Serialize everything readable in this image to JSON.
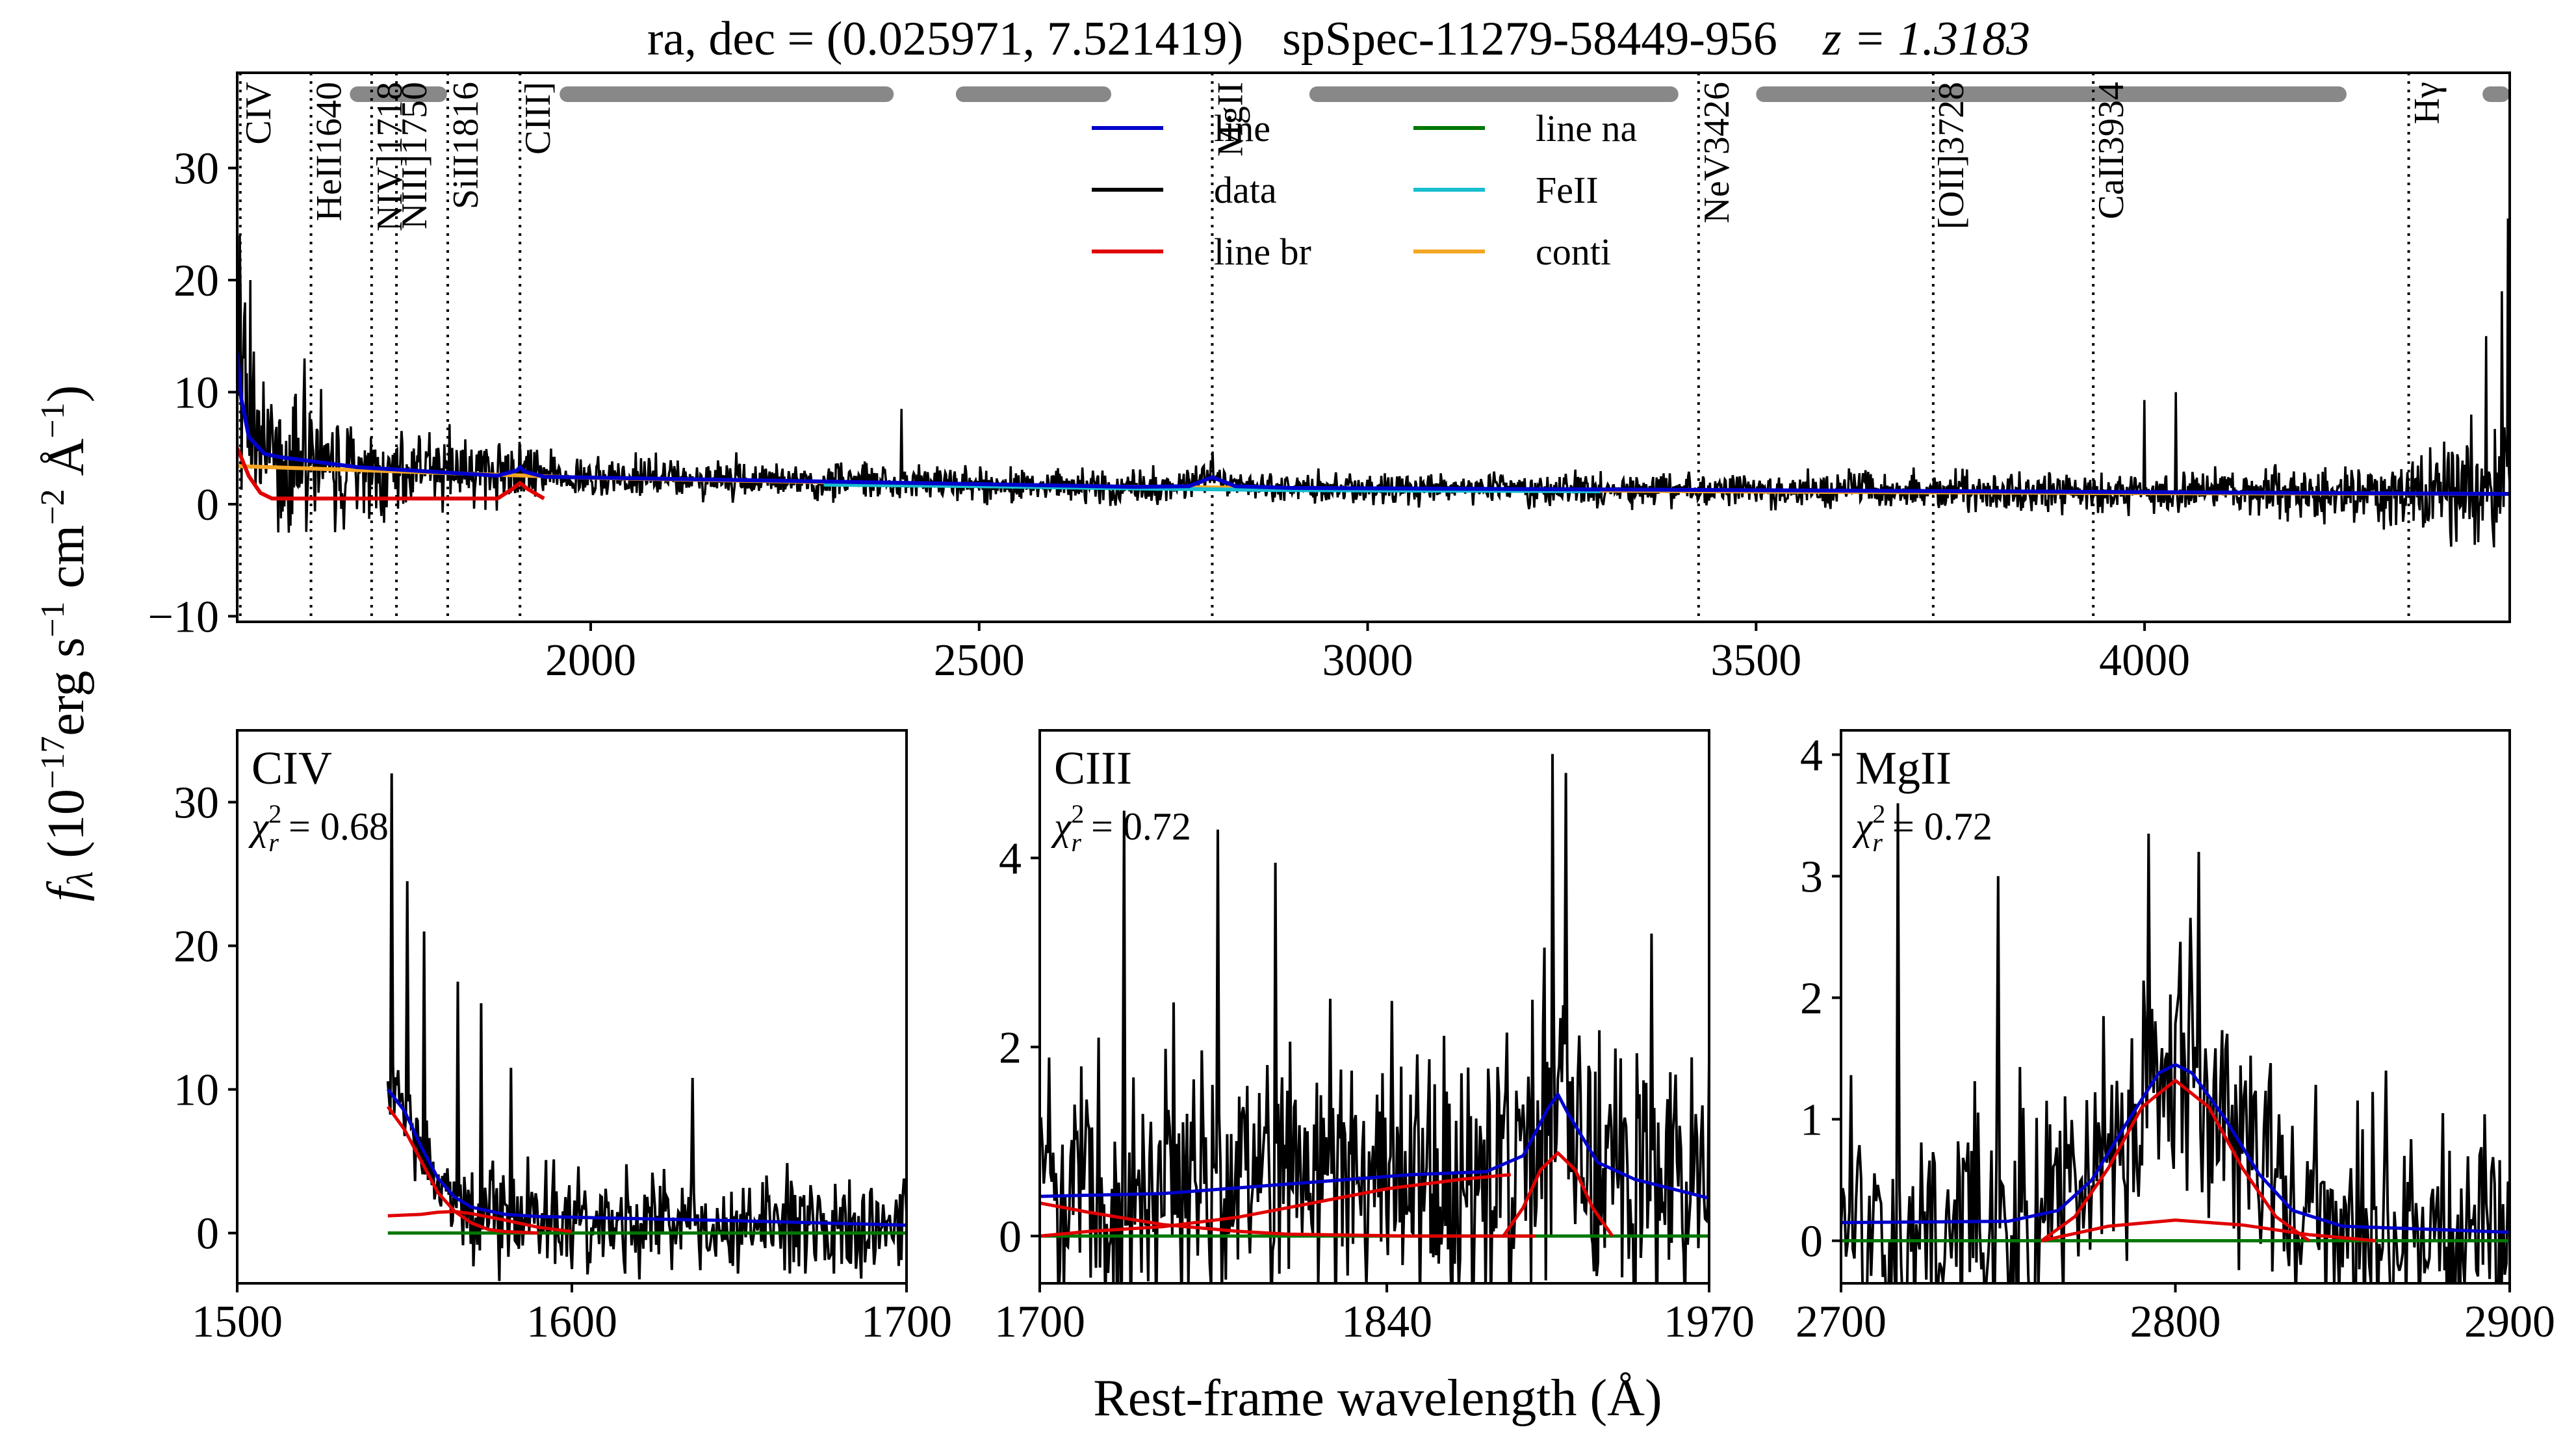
{
  "figure": {
    "title_parts": [
      "ra, dec = (0.025971, 7.521419)",
      "spSpec-11279-58449-956",
      "z = 1.3183"
    ],
    "ylabel_html": [
      "f",
      "λ",
      " (10",
      "−17",
      "erg s",
      "−1",
      " cm",
      "−2",
      " Å",
      "−1",
      ")"
    ],
    "xlabel": "Rest-frame wavelength (Å)",
    "colors": {
      "data": "#000000",
      "line": "#0000cc",
      "line_br": "#e00000",
      "line_na": "#007700",
      "feii": "#17becf",
      "conti": "#f5a623",
      "windows": "#888888"
    }
  },
  "chart_data": [
    {
      "type": "line",
      "panel": "full-spectrum",
      "xlim": [
        1545,
        4470
      ],
      "ylim": [
        -10.5,
        38.5
      ],
      "xticks": [
        2000,
        2500,
        3000,
        3500,
        4000
      ],
      "yticks": [
        -10,
        0,
        10,
        20,
        30
      ],
      "grid": false,
      "legend": {
        "placement": "top-center",
        "entries": [
          {
            "key": "line",
            "label": "line"
          },
          {
            "key": "data",
            "label": "data"
          },
          {
            "key": "line_br",
            "label": "line br"
          },
          {
            "key": "line_na",
            "label": "line na"
          },
          {
            "key": "feii",
            "label": "FeII"
          },
          {
            "key": "conti",
            "label": "conti"
          }
        ]
      },
      "line_markers": [
        {
          "label": "CIV",
          "x": 1549
        },
        {
          "label": "HeII1640",
          "x": 1640
        },
        {
          "label": "NIV]1718",
          "x": 1718
        },
        {
          "label": "NIII]1750",
          "x": 1750
        },
        {
          "label": "SiII1816",
          "x": 1816
        },
        {
          "label": "CIII]",
          "x": 1909
        },
        {
          "label": "MgII",
          "x": 2800
        },
        {
          "label": "NeV3426",
          "x": 3426
        },
        {
          "label": "[OII]3728",
          "x": 3728
        },
        {
          "label": "CaII3934",
          "x": 3934
        },
        {
          "label": "Hγ",
          "x": 4340
        }
      ],
      "continuum_windows": [
        [
          1690,
          1815
        ],
        [
          1960,
          2390
        ],
        [
          2470,
          2670
        ],
        [
          2925,
          3400
        ],
        [
          3500,
          4260
        ],
        [
          4435,
          4470
        ]
      ],
      "series": [
        {
          "name": "conti",
          "type": "power-law",
          "x": [
            1545,
            2000,
            2500,
            3000,
            3500,
            4000,
            4470
          ],
          "y": [
            3.4,
            2.35,
            1.7,
            1.35,
            1.12,
            0.98,
            0.92
          ]
        },
        {
          "name": "line",
          "x": [
            1545,
            1550,
            1560,
            1580,
            1600,
            1700,
            1880,
            1905,
            1909,
            1915,
            1940,
            2700,
            2770,
            2800,
            2830,
            2900,
            4470
          ],
          "y": [
            13.5,
            9.5,
            6.0,
            4.5,
            4.2,
            3.3,
            2.55,
            3.0,
            3.3,
            2.9,
            2.45,
            1.55,
            1.6,
            2.4,
            1.6,
            1.45,
            0.92
          ]
        },
        {
          "name": "line br",
          "x": [
            1545,
            1550,
            1560,
            1575,
            1590,
            1880,
            1900,
            1909,
            1918,
            1940
          ],
          "y": [
            5.0,
            4.2,
            2.5,
            1.0,
            0.5,
            0.5,
            1.4,
            1.9,
            1.4,
            0.5
          ]
        },
        {
          "name": "FeII",
          "x": [
            2300,
            2500,
            2700,
            2900,
            3100,
            3300
          ],
          "y": [
            1.75,
            1.6,
            1.4,
            1.25,
            1.2,
            1.15
          ]
        }
      ],
      "data_series": {
        "name": "data",
        "seed": 1,
        "noise_profile": [
          [
            1545,
            8
          ],
          [
            1700,
            4
          ],
          [
            2000,
            1.8
          ],
          [
            3000,
            1.3
          ],
          [
            4000,
            1.8
          ],
          [
            4300,
            2.5
          ],
          [
            4470,
            6
          ]
        ],
        "spikes": [
          [
            1548,
            24
          ],
          [
            1555,
            18
          ],
          [
            1562,
            20
          ],
          [
            1632,
            13
          ],
          [
            2400,
            8.5
          ],
          [
            2800,
            4.7
          ],
          [
            4000,
            9.3
          ],
          [
            4040,
            10
          ],
          [
            4420,
            8
          ],
          [
            4440,
            15
          ],
          [
            4460,
            19
          ],
          [
            4468,
            25.5
          ]
        ]
      }
    },
    {
      "type": "line",
      "panel": "CIV",
      "title": "CIV",
      "chi2": "0.68",
      "xlim": [
        1500,
        1700
      ],
      "ylim": [
        -3.5,
        35
      ],
      "xticks": [
        1500,
        1600,
        1700
      ],
      "yticks": [
        0,
        10,
        20,
        30
      ],
      "series": [
        {
          "name": "line",
          "x": [
            1545,
            1550,
            1555,
            1560,
            1565,
            1570,
            1580,
            1590,
            1600,
            1650,
            1700
          ],
          "y": [
            10.0,
            8.5,
            6.0,
            3.8,
            2.5,
            1.8,
            1.3,
            1.15,
            1.1,
            0.85,
            0.55
          ]
        },
        {
          "name": "line br",
          "x": [
            1545,
            1550,
            1555,
            1560,
            1565,
            1570,
            1575,
            1580,
            1590
          ],
          "y": [
            8.8,
            7.2,
            5.0,
            2.8,
            1.5,
            0.7,
            0.25,
            0.1,
            0.0
          ]
        },
        {
          "name": "line br",
          "x": [
            1545,
            1555,
            1560,
            1565,
            1570,
            1580,
            1590,
            1600
          ],
          "y": [
            1.2,
            1.3,
            1.45,
            1.5,
            1.35,
            0.9,
            0.4,
            0.1
          ]
        },
        {
          "name": "line na",
          "x": [
            1545,
            1700
          ],
          "y": [
            0.0,
            0.0
          ]
        }
      ],
      "data_series": {
        "name": "data",
        "seed": 2,
        "x_start": 1545,
        "x_end": 1700,
        "noise": 3.5,
        "spikes": [
          [
            1546,
            32
          ],
          [
            1551,
            24.5
          ],
          [
            1556,
            21
          ],
          [
            1566,
            17.5
          ],
          [
            1573,
            16
          ],
          [
            1582,
            11.5
          ],
          [
            1636,
            10.8
          ]
        ]
      }
    },
    {
      "type": "line",
      "panel": "CIII",
      "title": "CIII",
      "chi2": "0.72",
      "xlim": [
        1700,
        1970
      ],
      "ylim": [
        -0.5,
        5.35
      ],
      "xticks": [
        1700,
        1840,
        1970
      ],
      "yticks": [
        0,
        2,
        4
      ],
      "series": [
        {
          "name": "line",
          "x": [
            1700,
            1750,
            1800,
            1850,
            1880,
            1895,
            1905,
            1909,
            1913,
            1925,
            1940,
            1970
          ],
          "y": [
            0.42,
            0.45,
            0.55,
            0.65,
            0.68,
            0.85,
            1.35,
            1.5,
            1.3,
            0.78,
            0.6,
            0.4
          ]
        },
        {
          "name": "line br",
          "x": [
            1700,
            1720,
            1750,
            1780,
            1810,
            1840,
            1870,
            1890
          ],
          "y": [
            0.0,
            0.05,
            0.1,
            0.2,
            0.35,
            0.5,
            0.6,
            0.65
          ]
        },
        {
          "name": "line br",
          "x": [
            1700,
            1720,
            1750,
            1780,
            1800,
            1850,
            1900
          ],
          "y": [
            0.35,
            0.25,
            0.12,
            0.05,
            0.02,
            0.0,
            0.0
          ]
        },
        {
          "name": "line br",
          "x": [
            1887,
            1895,
            1902,
            1909,
            1916,
            1923,
            1931
          ],
          "y": [
            0.0,
            0.3,
            0.7,
            0.88,
            0.7,
            0.3,
            0.0
          ]
        },
        {
          "name": "line na",
          "x": [
            1700,
            1970
          ],
          "y": [
            0.0,
            0.0
          ]
        }
      ],
      "data_series": {
        "name": "data",
        "seed": 3,
        "x_start": 1700,
        "x_end": 1970,
        "noise": 1.4,
        "spikes": [
          [
            1734,
            4.5
          ],
          [
            1772,
            4.3
          ],
          [
            1795,
            3.95
          ],
          [
            1907,
            5.1
          ],
          [
            1912,
            4.9
          ],
          [
            1947,
            3.2
          ]
        ]
      }
    },
    {
      "type": "line",
      "panel": "MgII",
      "title": "MgII",
      "chi2": "0.72",
      "xlim": [
        2700,
        2900
      ],
      "ylim": [
        -0.35,
        4.2
      ],
      "xticks": [
        2700,
        2800,
        2900
      ],
      "yticks": [
        0,
        1,
        2,
        3,
        4
      ],
      "series": [
        {
          "name": "line",
          "x": [
            2700,
            2750,
            2765,
            2775,
            2785,
            2795,
            2800,
            2805,
            2815,
            2825,
            2835,
            2850,
            2900
          ],
          "y": [
            0.15,
            0.16,
            0.25,
            0.5,
            0.95,
            1.38,
            1.45,
            1.38,
            1.0,
            0.55,
            0.25,
            0.12,
            0.07
          ]
        },
        {
          "name": "line br",
          "x": [
            2760,
            2770,
            2780,
            2790,
            2800,
            2810,
            2820,
            2830,
            2840
          ],
          "y": [
            0.0,
            0.2,
            0.6,
            1.1,
            1.32,
            1.1,
            0.6,
            0.2,
            0.0
          ]
        },
        {
          "name": "line br",
          "x": [
            2760,
            2780,
            2800,
            2820,
            2840,
            2860
          ],
          "y": [
            0.0,
            0.12,
            0.17,
            0.13,
            0.05,
            0.0
          ]
        },
        {
          "name": "line na",
          "x": [
            2700,
            2900
          ],
          "y": [
            0.0,
            0.0
          ]
        }
      ],
      "data_series": {
        "name": "data",
        "seed": 4,
        "x_start": 2700,
        "x_end": 2900,
        "noise": 1.0,
        "spikes": [
          [
            2717,
            3.6
          ],
          [
            2747,
            3.0
          ],
          [
            2792,
            3.35
          ],
          [
            2807,
            3.2
          ],
          [
            2863,
            1.4
          ],
          [
            2880,
            1.05
          ]
        ]
      }
    }
  ]
}
